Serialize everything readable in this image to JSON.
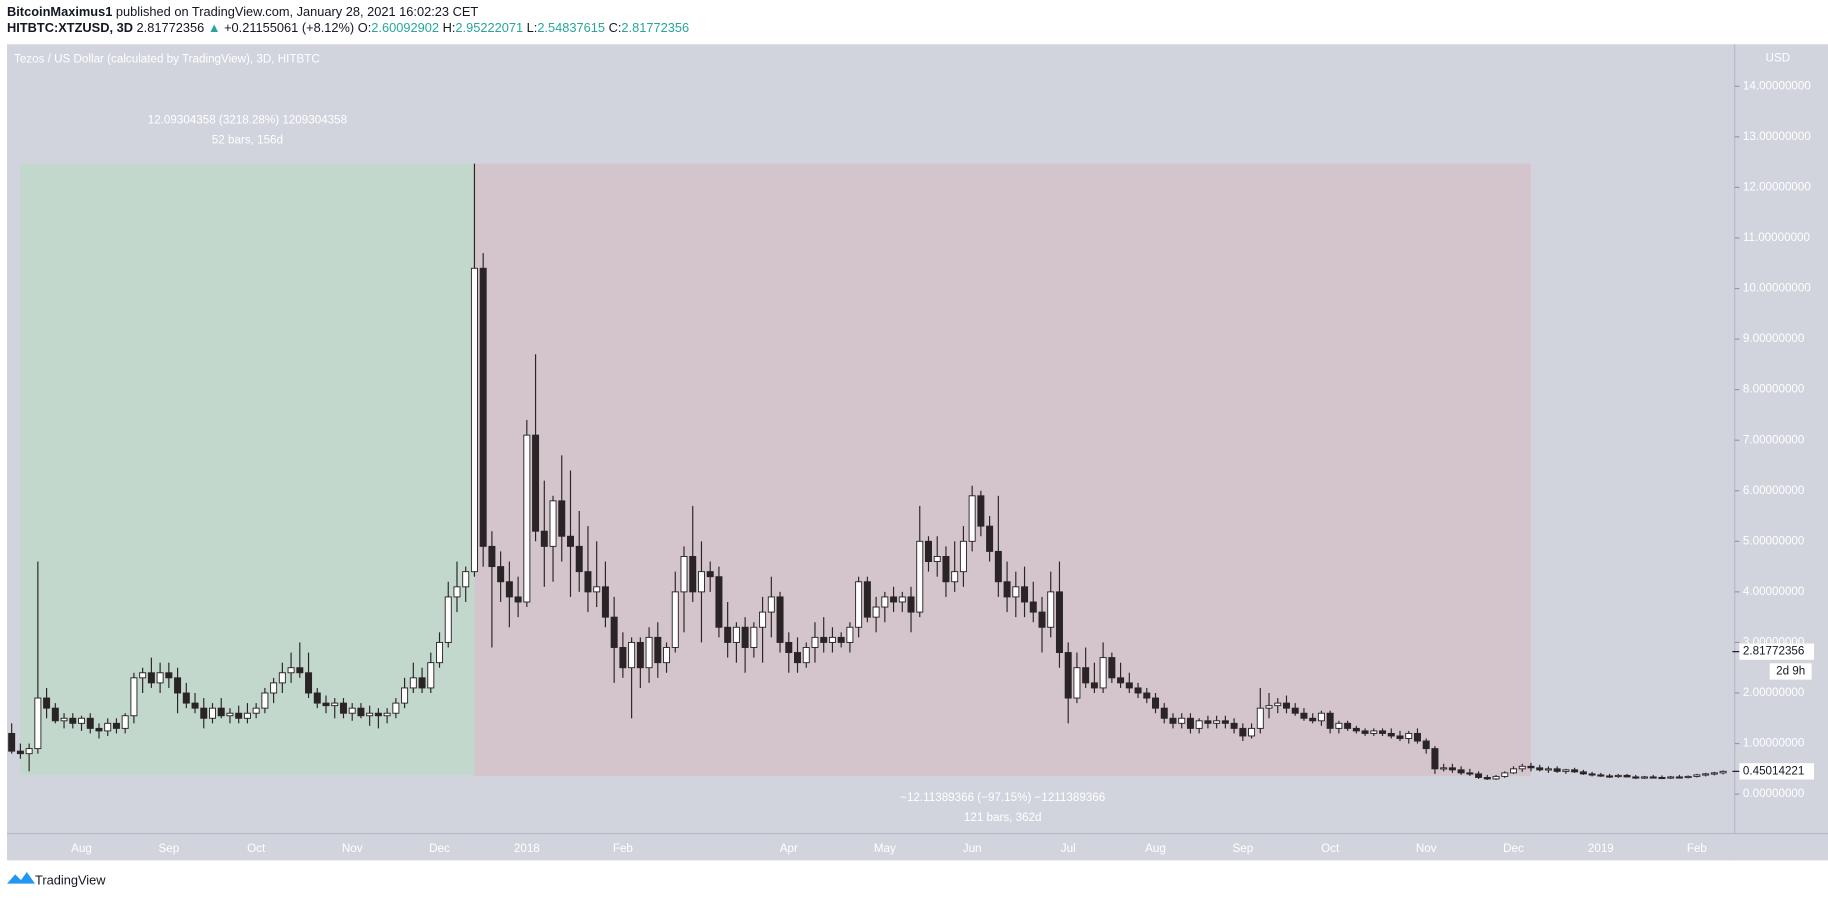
{
  "header": {
    "author": "BitcoinMaximus1",
    "published": "published on TradingView.com, January 28, 2021 16:02:23 CET",
    "symbol": "HITBTC:XTZUSD, 3D",
    "last": "2.81772356",
    "arrow": "▲",
    "change": "+0.21155061 (+8.12%)",
    "ohlc": [
      {
        "key": "O:",
        "value": "2.60092902"
      },
      {
        "key": "H:",
        "value": "2.95222071"
      },
      {
        "key": "L:",
        "value": "2.54837615"
      },
      {
        "key": "C:",
        "value": "2.81772356"
      }
    ]
  },
  "chart_data": {
    "type": "candlestick",
    "title": "Tezos / US Dollar (calculated by TradingView), 3D, HITBTC",
    "currency": "USD",
    "up_color": "#ffffff",
    "down_color": "#2a2427",
    "wick_color": "#2a2427",
    "grid": false,
    "ylim": [
      -0.78,
      14.83
    ],
    "yticks": [
      {
        "value": 0,
        "label": "0.00000000"
      },
      {
        "value": 1,
        "label": "1.00000000"
      },
      {
        "value": 2,
        "label": "2.00000000"
      },
      {
        "value": 3,
        "label": "3.00000000"
      },
      {
        "value": 4,
        "label": "4.00000000"
      },
      {
        "value": 5,
        "label": "5.00000000"
      },
      {
        "value": 6,
        "label": "6.00000000"
      },
      {
        "value": 7,
        "label": "7.00000000"
      },
      {
        "value": 8,
        "label": "8.00000000"
      },
      {
        "value": 9,
        "label": "9.00000000"
      },
      {
        "value": 10,
        "label": "10.00000000"
      },
      {
        "value": 11,
        "label": "11.00000000"
      },
      {
        "value": 12,
        "label": "12.00000000"
      },
      {
        "value": 13,
        "label": "13.00000000"
      },
      {
        "value": 14,
        "label": "14.00000000"
      }
    ],
    "categories": [
      null,
      null,
      null,
      null,
      null,
      null,
      null,
      null,
      "Aug",
      null,
      null,
      null,
      null,
      null,
      null,
      null,
      null,
      null,
      "Sep",
      null,
      null,
      null,
      null,
      null,
      null,
      null,
      null,
      null,
      "Oct",
      null,
      null,
      null,
      null,
      null,
      null,
      null,
      null,
      null,
      null,
      "Nov",
      null,
      null,
      null,
      null,
      null,
      null,
      null,
      null,
      null,
      "Dec",
      null,
      null,
      null,
      null,
      null,
      null,
      null,
      null,
      null,
      "2018",
      null,
      null,
      null,
      null,
      null,
      null,
      null,
      null,
      null,
      null,
      "Feb",
      null,
      null,
      null,
      null,
      null,
      null,
      null,
      null,
      null,
      null,
      null,
      null,
      null,
      null,
      null,
      null,
      null,
      null,
      "Apr",
      null,
      null,
      null,
      null,
      null,
      null,
      null,
      null,
      null,
      null,
      "May",
      null,
      null,
      null,
      null,
      null,
      null,
      null,
      null,
      null,
      "Jun",
      null,
      null,
      null,
      null,
      null,
      null,
      null,
      null,
      null,
      null,
      "Jul",
      null,
      null,
      null,
      null,
      null,
      null,
      null,
      null,
      null,
      "Aug",
      null,
      null,
      null,
      null,
      null,
      null,
      null,
      null,
      null,
      "Sep",
      null,
      null,
      null,
      null,
      null,
      null,
      null,
      null,
      null,
      "Oct",
      null,
      null,
      null,
      null,
      null,
      null,
      null,
      null,
      null,
      null,
      "Nov",
      null,
      null,
      null,
      null,
      null,
      null,
      null,
      null,
      null,
      "Dec",
      null,
      null,
      null,
      null,
      null,
      null,
      null,
      null,
      null,
      "2019",
      null,
      null,
      null,
      null,
      null,
      null,
      null,
      null,
      null,
      null,
      "Feb",
      null,
      null,
      null
    ],
    "ohlc": [
      [
        1.2,
        1.4,
        0.8,
        0.85
      ],
      [
        0.85,
        1.0,
        0.7,
        0.8
      ],
      [
        0.8,
        1.0,
        0.45,
        0.9
      ],
      [
        0.9,
        4.6,
        0.8,
        1.9
      ],
      [
        1.9,
        2.1,
        1.5,
        1.7
      ],
      [
        1.7,
        1.8,
        1.4,
        1.45
      ],
      [
        1.45,
        1.6,
        1.3,
        1.5
      ],
      [
        1.5,
        1.6,
        1.3,
        1.4
      ],
      [
        1.4,
        1.55,
        1.25,
        1.5
      ],
      [
        1.5,
        1.6,
        1.2,
        1.3
      ],
      [
        1.3,
        1.4,
        1.1,
        1.25
      ],
      [
        1.25,
        1.5,
        1.15,
        1.4
      ],
      [
        1.4,
        1.5,
        1.2,
        1.3
      ],
      [
        1.3,
        1.6,
        1.2,
        1.55
      ],
      [
        1.55,
        2.4,
        1.4,
        2.3
      ],
      [
        2.3,
        2.5,
        2.0,
        2.4
      ],
      [
        2.4,
        2.7,
        2.1,
        2.2
      ],
      [
        2.2,
        2.6,
        2.0,
        2.4
      ],
      [
        2.4,
        2.6,
        2.1,
        2.3
      ],
      [
        2.3,
        2.5,
        1.6,
        2.0
      ],
      [
        2.0,
        2.2,
        1.7,
        1.8
      ],
      [
        1.8,
        2.0,
        1.6,
        1.7
      ],
      [
        1.7,
        1.9,
        1.3,
        1.5
      ],
      [
        1.5,
        1.8,
        1.4,
        1.7
      ],
      [
        1.7,
        1.9,
        1.5,
        1.55
      ],
      [
        1.55,
        1.7,
        1.4,
        1.6
      ],
      [
        1.6,
        1.75,
        1.4,
        1.5
      ],
      [
        1.5,
        1.8,
        1.4,
        1.6
      ],
      [
        1.6,
        1.8,
        1.5,
        1.7
      ],
      [
        1.7,
        2.1,
        1.6,
        2.0
      ],
      [
        2.0,
        2.3,
        1.8,
        2.2
      ],
      [
        2.2,
        2.6,
        2.0,
        2.4
      ],
      [
        2.4,
        2.8,
        2.2,
        2.5
      ],
      [
        2.5,
        3.0,
        2.3,
        2.4
      ],
      [
        2.4,
        2.8,
        1.9,
        2.0
      ],
      [
        2.0,
        2.1,
        1.7,
        1.8
      ],
      [
        1.8,
        1.95,
        1.6,
        1.75
      ],
      [
        1.75,
        1.9,
        1.5,
        1.8
      ],
      [
        1.8,
        1.9,
        1.5,
        1.6
      ],
      [
        1.6,
        1.8,
        1.45,
        1.7
      ],
      [
        1.7,
        1.8,
        1.5,
        1.55
      ],
      [
        1.55,
        1.75,
        1.35,
        1.6
      ],
      [
        1.6,
        1.7,
        1.3,
        1.55
      ],
      [
        1.55,
        1.7,
        1.4,
        1.6
      ],
      [
        1.6,
        1.9,
        1.5,
        1.8
      ],
      [
        1.8,
        2.3,
        1.7,
        2.1
      ],
      [
        2.1,
        2.6,
        2.0,
        2.3
      ],
      [
        2.3,
        2.5,
        2.0,
        2.1
      ],
      [
        2.1,
        2.8,
        2.0,
        2.6
      ],
      [
        2.6,
        3.2,
        2.5,
        3.0
      ],
      [
        3.0,
        4.2,
        2.9,
        3.9
      ],
      [
        3.9,
        4.6,
        3.6,
        4.1
      ],
      [
        4.1,
        4.5,
        3.8,
        4.4
      ],
      [
        4.4,
        12.47,
        4.3,
        10.4
      ],
      [
        10.4,
        10.7,
        4.5,
        4.9
      ],
      [
        4.9,
        5.2,
        2.9,
        4.5
      ],
      [
        4.5,
        4.8,
        3.8,
        4.2
      ],
      [
        4.2,
        4.6,
        3.3,
        3.9
      ],
      [
        3.9,
        4.3,
        3.5,
        3.8
      ],
      [
        3.8,
        7.4,
        3.7,
        7.1
      ],
      [
        7.1,
        8.7,
        5.0,
        5.2
      ],
      [
        5.2,
        6.2,
        4.1,
        4.9
      ],
      [
        4.9,
        5.9,
        4.2,
        5.8
      ],
      [
        5.8,
        6.7,
        4.6,
        5.1
      ],
      [
        5.1,
        6.4,
        3.9,
        4.9
      ],
      [
        4.9,
        5.6,
        4.0,
        4.4
      ],
      [
        4.4,
        5.3,
        3.6,
        4.0
      ],
      [
        4.0,
        5.0,
        3.7,
        4.1
      ],
      [
        4.1,
        4.6,
        3.3,
        3.5
      ],
      [
        3.5,
        3.9,
        2.2,
        2.9
      ],
      [
        2.9,
        3.2,
        2.3,
        2.5
      ],
      [
        2.5,
        3.1,
        1.5,
        3.0
      ],
      [
        3.0,
        3.1,
        2.1,
        2.5
      ],
      [
        2.5,
        3.3,
        2.2,
        3.1
      ],
      [
        3.1,
        3.4,
        2.3,
        2.6
      ],
      [
        2.6,
        3.0,
        2.4,
        2.9
      ],
      [
        2.9,
        4.4,
        2.8,
        4.0
      ],
      [
        4.0,
        4.9,
        3.2,
        4.7
      ],
      [
        4.7,
        5.7,
        3.8,
        4.0
      ],
      [
        4.0,
        5.0,
        3.0,
        4.4
      ],
      [
        4.4,
        4.6,
        4.0,
        4.3
      ],
      [
        4.3,
        4.5,
        3.1,
        3.3
      ],
      [
        3.3,
        3.8,
        2.7,
        3.0
      ],
      [
        3.0,
        3.4,
        2.6,
        3.3
      ],
      [
        3.3,
        3.5,
        2.4,
        2.9
      ],
      [
        2.9,
        3.4,
        2.7,
        3.3
      ],
      [
        3.3,
        3.9,
        2.6,
        3.6
      ],
      [
        3.6,
        4.3,
        3.1,
        3.9
      ],
      [
        3.9,
        4.0,
        2.8,
        3.0
      ],
      [
        3.0,
        3.2,
        2.4,
        2.8
      ],
      [
        2.8,
        3.1,
        2.4,
        2.6
      ],
      [
        2.6,
        3.0,
        2.5,
        2.9
      ],
      [
        2.9,
        3.4,
        2.6,
        3.1
      ],
      [
        3.1,
        3.5,
        2.8,
        3.0
      ],
      [
        3.0,
        3.3,
        2.8,
        3.1
      ],
      [
        3.1,
        3.2,
        2.9,
        3.0
      ],
      [
        3.0,
        3.4,
        2.8,
        3.3
      ],
      [
        3.3,
        4.3,
        3.1,
        4.2
      ],
      [
        4.2,
        4.3,
        3.4,
        3.5
      ],
      [
        3.5,
        3.9,
        3.2,
        3.7
      ],
      [
        3.7,
        4.0,
        3.4,
        3.9
      ],
      [
        3.9,
        4.1,
        3.6,
        3.8
      ],
      [
        3.8,
        4.0,
        3.6,
        3.9
      ],
      [
        3.9,
        4.1,
        3.2,
        3.6
      ],
      [
        3.6,
        5.7,
        3.5,
        5.0
      ],
      [
        5.0,
        5.1,
        4.4,
        4.6
      ],
      [
        4.6,
        5.1,
        4.3,
        4.7
      ],
      [
        4.7,
        4.9,
        3.9,
        4.2
      ],
      [
        4.2,
        5.0,
        4.0,
        4.4
      ],
      [
        4.4,
        5.3,
        4.1,
        5.0
      ],
      [
        5.0,
        6.1,
        4.8,
        5.9
      ],
      [
        5.9,
        6.0,
        5.1,
        5.3
      ],
      [
        5.3,
        5.5,
        4.6,
        4.8
      ],
      [
        4.8,
        5.9,
        3.9,
        4.2
      ],
      [
        4.2,
        4.6,
        3.6,
        3.9
      ],
      [
        3.9,
        4.4,
        3.5,
        4.1
      ],
      [
        4.1,
        4.5,
        3.5,
        3.8
      ],
      [
        3.8,
        4.2,
        3.4,
        3.6
      ],
      [
        3.6,
        3.9,
        2.8,
        3.3
      ],
      [
        3.3,
        4.4,
        3.1,
        4.0
      ],
      [
        4.0,
        4.6,
        2.5,
        2.8
      ],
      [
        2.8,
        3.0,
        1.4,
        1.9
      ],
      [
        1.9,
        2.8,
        1.8,
        2.5
      ],
      [
        2.5,
        2.9,
        2.1,
        2.2
      ],
      [
        2.2,
        2.6,
        2.0,
        2.1
      ],
      [
        2.1,
        3.0,
        2.0,
        2.7
      ],
      [
        2.7,
        2.8,
        2.2,
        2.3
      ],
      [
        2.3,
        2.6,
        2.1,
        2.2
      ],
      [
        2.2,
        2.4,
        2.0,
        2.1
      ],
      [
        2.1,
        2.2,
        1.9,
        2.0
      ],
      [
        2.0,
        2.1,
        1.8,
        1.9
      ],
      [
        1.9,
        2.0,
        1.6,
        1.7
      ],
      [
        1.7,
        1.8,
        1.4,
        1.5
      ],
      [
        1.5,
        1.6,
        1.3,
        1.4
      ],
      [
        1.4,
        1.6,
        1.3,
        1.5
      ],
      [
        1.5,
        1.6,
        1.2,
        1.3
      ],
      [
        1.3,
        1.5,
        1.2,
        1.45
      ],
      [
        1.45,
        1.55,
        1.3,
        1.4
      ],
      [
        1.4,
        1.55,
        1.3,
        1.45
      ],
      [
        1.45,
        1.55,
        1.3,
        1.4
      ],
      [
        1.4,
        1.5,
        1.2,
        1.3
      ],
      [
        1.3,
        1.4,
        1.05,
        1.15
      ],
      [
        1.15,
        1.4,
        1.1,
        1.3
      ],
      [
        1.3,
        2.1,
        1.2,
        1.7
      ],
      [
        1.7,
        2.0,
        1.5,
        1.75
      ],
      [
        1.75,
        1.9,
        1.6,
        1.8
      ],
      [
        1.8,
        1.95,
        1.6,
        1.7
      ],
      [
        1.7,
        1.8,
        1.55,
        1.6
      ],
      [
        1.6,
        1.7,
        1.45,
        1.5
      ],
      [
        1.5,
        1.6,
        1.4,
        1.45
      ],
      [
        1.45,
        1.65,
        1.35,
        1.6
      ],
      [
        1.6,
        1.65,
        1.2,
        1.3
      ],
      [
        1.3,
        1.45,
        1.2,
        1.4
      ],
      [
        1.4,
        1.45,
        1.25,
        1.3
      ],
      [
        1.3,
        1.35,
        1.2,
        1.25
      ],
      [
        1.25,
        1.3,
        1.15,
        1.2
      ],
      [
        1.2,
        1.3,
        1.15,
        1.25
      ],
      [
        1.25,
        1.3,
        1.15,
        1.2
      ],
      [
        1.2,
        1.3,
        1.1,
        1.15
      ],
      [
        1.15,
        1.25,
        1.05,
        1.1
      ],
      [
        1.1,
        1.25,
        1.0,
        1.2
      ],
      [
        1.2,
        1.3,
        1.0,
        1.05
      ],
      [
        1.05,
        1.1,
        0.8,
        0.9
      ],
      [
        0.9,
        0.95,
        0.4,
        0.5
      ],
      [
        0.5,
        0.6,
        0.45,
        0.52
      ],
      [
        0.52,
        0.6,
        0.42,
        0.48
      ],
      [
        0.48,
        0.55,
        0.38,
        0.42
      ],
      [
        0.42,
        0.5,
        0.36,
        0.4
      ],
      [
        0.4,
        0.45,
        0.3,
        0.33
      ],
      [
        0.33,
        0.38,
        0.28,
        0.3
      ],
      [
        0.3,
        0.38,
        0.28,
        0.35
      ],
      [
        0.35,
        0.45,
        0.32,
        0.42
      ],
      [
        0.42,
        0.55,
        0.4,
        0.5
      ],
      [
        0.5,
        0.6,
        0.44,
        0.55
      ],
      [
        0.55,
        0.62,
        0.45,
        0.52
      ],
      [
        0.52,
        0.58,
        0.45,
        0.48
      ],
      [
        0.48,
        0.55,
        0.42,
        0.5
      ],
      [
        0.5,
        0.55,
        0.42,
        0.45
      ],
      [
        0.45,
        0.5,
        0.4,
        0.48
      ],
      [
        0.48,
        0.52,
        0.42,
        0.44
      ],
      [
        0.44,
        0.48,
        0.38,
        0.4
      ],
      [
        0.4,
        0.44,
        0.35,
        0.38
      ],
      [
        0.38,
        0.42,
        0.34,
        0.36
      ],
      [
        0.36,
        0.4,
        0.32,
        0.35
      ],
      [
        0.35,
        0.4,
        0.32,
        0.37
      ],
      [
        0.37,
        0.4,
        0.33,
        0.34
      ],
      [
        0.34,
        0.38,
        0.3,
        0.32
      ],
      [
        0.32,
        0.36,
        0.3,
        0.34
      ],
      [
        0.34,
        0.38,
        0.31,
        0.33
      ],
      [
        0.33,
        0.37,
        0.3,
        0.32
      ],
      [
        0.32,
        0.36,
        0.3,
        0.34
      ],
      [
        0.34,
        0.38,
        0.31,
        0.33
      ],
      [
        0.33,
        0.37,
        0.31,
        0.35
      ],
      [
        0.35,
        0.4,
        0.33,
        0.38
      ],
      [
        0.38,
        0.42,
        0.35,
        0.4
      ],
      [
        0.4,
        0.44,
        0.37,
        0.42
      ],
      [
        0.42,
        0.47,
        0.39,
        0.45
      ]
    ],
    "measurements": [
      {
        "label": "12.09304358 (3218.28%) 1209304358",
        "info": "52 bars, 156d",
        "from_bar": 1,
        "to_bar": 53,
        "from_price": 0.38,
        "to_price": 12.47,
        "color": "#c3d8cc"
      },
      {
        "label": "−12.11389366 (−97.15%) −1211389366",
        "info": "121 bars, 362d",
        "from_bar": 53,
        "to_bar": 174,
        "from_price": 12.47,
        "to_price": 0.36,
        "color": "#d4c5cc"
      }
    ],
    "price_labels": [
      {
        "value": 2.81772356,
        "label": "2.81772356"
      },
      {
        "value": 0.45014221,
        "label": "0.45014221"
      }
    ],
    "countdown": "2d 9h"
  },
  "footer": {
    "brand": "TradingView"
  }
}
